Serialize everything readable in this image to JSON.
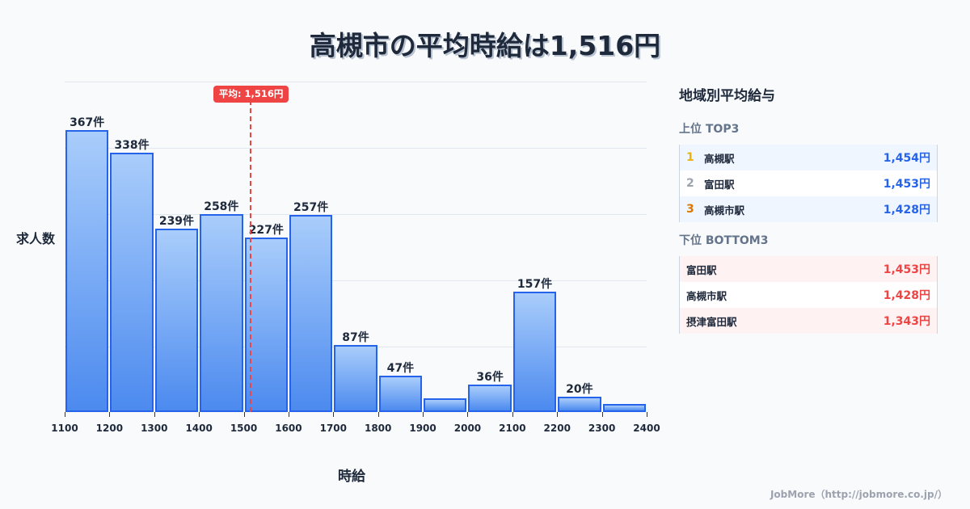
{
  "title": "高槻市の平均時給は1,516円",
  "chart_data": {
    "type": "bar",
    "title": "高槻市の平均時給は1,516円",
    "xlabel": "時給",
    "ylabel": "求人数",
    "categories": [
      "1100-1200",
      "1200-1300",
      "1300-1400",
      "1400-1500",
      "1500-1600",
      "1600-1700",
      "1700-1800",
      "1800-1900",
      "1900-2000",
      "2000-2100",
      "2100-2200",
      "2200-2300",
      "2300-2400"
    ],
    "bin_edges": [
      1100,
      1200,
      1300,
      1400,
      1500,
      1600,
      1700,
      1800,
      1900,
      2000,
      2100,
      2200,
      2300,
      2400
    ],
    "values": [
      367,
      338,
      239,
      258,
      227,
      257,
      87,
      47,
      18,
      36,
      157,
      20,
      11
    ],
    "labels": [
      "367件",
      "338件",
      "239件",
      "258件",
      "227件",
      "257件",
      "87件",
      "47件",
      "",
      "36件",
      "157件",
      "20件",
      ""
    ],
    "x_tick_labels": [
      "1100",
      "1200",
      "1300",
      "1400",
      "1500",
      "1600",
      "1700",
      "1800",
      "1900",
      "2000",
      "2100",
      "2200",
      "2300",
      "2400"
    ],
    "average": {
      "value": 1516,
      "label": "平均: 1,516円",
      "color": "#ef4444"
    },
    "xlim": [
      1100,
      2400
    ],
    "ylim": [
      0,
      430
    ],
    "grid": true,
    "bar_color": "#4c8aef",
    "bar_border_color": "#2563eb"
  },
  "axis": {
    "ylabel": "求人数",
    "xlabel": "時給"
  },
  "panel": {
    "title": "地域別平均給与",
    "top": {
      "heading": "上位 TOP3",
      "rows": [
        {
          "rank": "1",
          "name": "高槻駅",
          "value": "1,454円",
          "rank_color": "#eab308"
        },
        {
          "rank": "2",
          "name": "富田駅",
          "value": "1,453円",
          "rank_color": "#9ca3af"
        },
        {
          "rank": "3",
          "name": "高槻市駅",
          "value": "1,428円",
          "rank_color": "#d97706"
        }
      ]
    },
    "bottom": {
      "heading": "下位 BOTTOM3",
      "rows": [
        {
          "name": "富田駅",
          "value": "1,453円"
        },
        {
          "name": "高槻市駅",
          "value": "1,428円"
        },
        {
          "name": "摂津富田駅",
          "value": "1,343円"
        }
      ]
    }
  },
  "footer": "JobMore（http://jobmore.co.jp/）"
}
